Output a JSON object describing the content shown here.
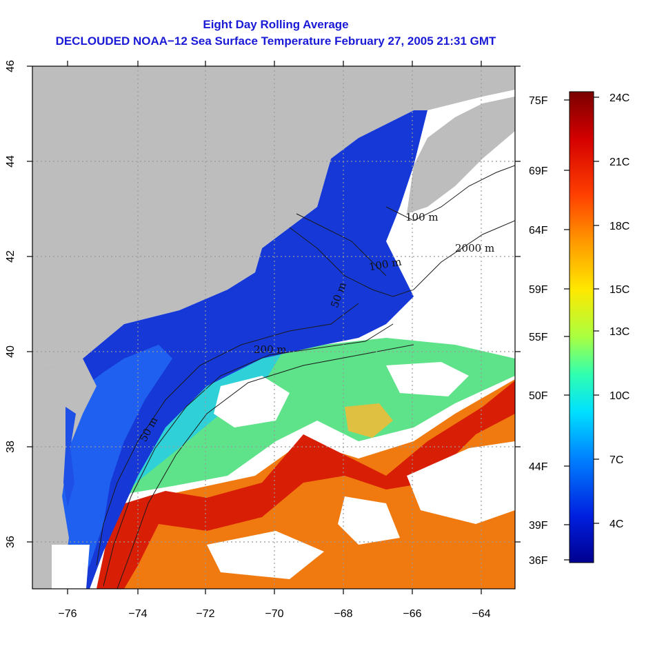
{
  "title": {
    "line1": "Eight Day Rolling Average",
    "line2": "DECLOUDED NOAA−12 Sea Surface Temperature February 27, 2005 21:31 GMT"
  },
  "map": {
    "lon_range": [
      -77,
      -63
    ],
    "lat_range": [
      35,
      46
    ],
    "lon_ticks": [
      "−76",
      "−74",
      "−72",
      "−70",
      "−68",
      "−66",
      "−64"
    ],
    "lat_ticks": [
      "36",
      "38",
      "40",
      "42",
      "44",
      "46"
    ],
    "grid": "dotted",
    "land_color": "#bdbdbd",
    "cloud_color": "#ffffff"
  },
  "contours": [
    {
      "label": "100 m"
    },
    {
      "label": "2000 m"
    },
    {
      "label": "200 m"
    },
    {
      "label": "50 m"
    },
    {
      "label": "100 m"
    },
    {
      "label": "50 m"
    }
  ],
  "colorbar": {
    "celsius_labels": [
      "24C",
      "21C",
      "18C",
      "15C",
      "13C",
      "10C",
      "7C",
      "4C"
    ],
    "fahrenheit_labels": [
      "75F",
      "69F",
      "64F",
      "59F",
      "55F",
      "50F",
      "44F",
      "39F",
      "36F"
    ],
    "colors": [
      "#7a0000",
      "#d40000",
      "#ff4000",
      "#ff9a00",
      "#ffe800",
      "#aaff40",
      "#30ffb0",
      "#00e0ff",
      "#0080ff",
      "#0020e0",
      "#000090"
    ]
  }
}
